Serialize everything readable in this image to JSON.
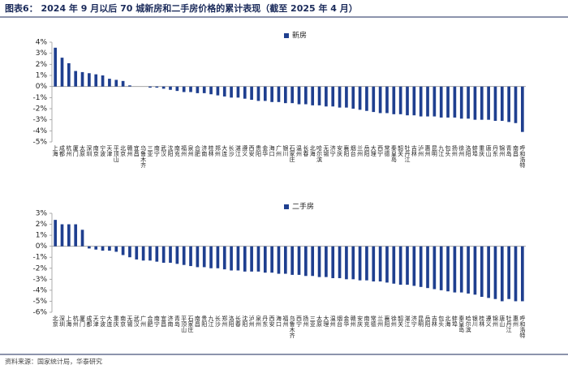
{
  "title": "图表6： 2024 年 9 月以后 70 城新房和二手房价格的累计表现（截至 2025 年 4 月）",
  "source": "资料来源：国家统计局，华泰研究",
  "chart_data": [
    {
      "type": "bar",
      "categories": [
        "上海",
        "成都",
        "杭州",
        "厦门",
        "太原",
        "深圳",
        "南京",
        "宁波",
        "天津",
        "平顶山",
        "北京",
        "赣州",
        "宜昌",
        "乌鲁木齐",
        "三亚",
        "南宁",
        "武汉",
        "沈阳",
        "南充",
        "福州",
        "泉州",
        "合肥",
        "济南",
        "桂林",
        "郑州",
        "大连",
        "长沙",
        "湛江",
        "遵义",
        "西安",
        "贵阳",
        "金华",
        "海口",
        "广州",
        "银川",
        "石家庄",
        "温州",
        "长春",
        "北海",
        "哈尔滨",
        "无锡",
        "济宁",
        "安庆",
        "襄阳",
        "烟台",
        "兰州",
        "岳阳",
        "大理",
        "西宁",
        "常德",
        "秦皇岛",
        "韶关",
        "牡丹江",
        "吉林",
        "泸州",
        "惠州",
        "昆明",
        "九江",
        "包头",
        "扬州",
        "徐州",
        "洛阳",
        "蚌埠",
        "重庆",
        "唐山",
        "丹东",
        "锦州",
        "青岛",
        "南昌",
        "呼和浩特"
      ],
      "series": [
        {
          "name": "新房",
          "color": "#1f3f8f",
          "values": [
            3.5,
            2.6,
            2.1,
            1.4,
            1.3,
            1.2,
            1.1,
            1.0,
            0.7,
            0.6,
            0.5,
            0.1,
            0.0,
            0.0,
            -0.1,
            -0.1,
            -0.2,
            -0.3,
            -0.4,
            -0.5,
            -0.5,
            -0.6,
            -0.6,
            -0.7,
            -0.8,
            -0.9,
            -1.0,
            -1.0,
            -1.1,
            -1.2,
            -1.3,
            -1.3,
            -1.4,
            -1.4,
            -1.5,
            -1.5,
            -1.6,
            -1.6,
            -1.7,
            -1.7,
            -1.8,
            -1.8,
            -1.9,
            -1.9,
            -2.0,
            -2.1,
            -2.2,
            -2.3,
            -2.4,
            -2.4,
            -2.5,
            -2.5,
            -2.6,
            -2.6,
            -2.7,
            -2.7,
            -2.7,
            -2.8,
            -2.8,
            -2.8,
            -2.9,
            -2.9,
            -3.0,
            -3.0,
            -3.0,
            -3.1,
            -3.1,
            -3.2,
            -3.3,
            -4.1
          ]
        }
      ],
      "ylim": [
        -5,
        4
      ],
      "yticks": [
        {
          "value": 4,
          "label": "4%"
        },
        {
          "value": 3,
          "label": "3%"
        },
        {
          "value": 2,
          "label": "2%"
        },
        {
          "value": 1,
          "label": "1%"
        },
        {
          "value": 0,
          "label": "0%"
        },
        {
          "value": -1,
          "label": "-1%"
        },
        {
          "value": -2,
          "label": "-2%"
        },
        {
          "value": -3,
          "label": "-3%"
        },
        {
          "value": -4,
          "label": "-4%"
        },
        {
          "value": -5,
          "label": "-5%"
        }
      ],
      "grid": false
    },
    {
      "type": "bar",
      "categories": [
        "北京",
        "深圳",
        "上海",
        "杭州",
        "厦门",
        "成都",
        "天津",
        "宁波",
        "大连",
        "重庆",
        "南京",
        "无锡",
        "武汉",
        "广州",
        "合肥",
        "南宁",
        "宜昌",
        "济南",
        "青岛",
        "平顶山",
        "石家庄",
        "南昌",
        "贵阳",
        "九江",
        "长沙",
        "郑州",
        "洛阳",
        "长春",
        "沈阳",
        "泸州",
        "泉州",
        "丹东",
        "西安",
        "海口",
        "福州",
        "乌鲁木齐",
        "西宁",
        "扬州",
        "三亚",
        "太原",
        "大理",
        "温州",
        "烟台",
        "金华",
        "赣州",
        "安庆",
        "南充",
        "常德",
        "兰州",
        "襄阳",
        "徐州",
        "韶关",
        "湛江",
        "济宁",
        "昆明",
        "岳阳",
        "吉林",
        "包头",
        "北海",
        "蚌埠",
        "秦皇岛",
        "哈尔滨",
        "银川",
        "桂林",
        "遵义",
        "锦州",
        "唐山",
        "牡丹江",
        "惠州",
        "呼和浩特"
      ],
      "series": [
        {
          "name": "二手房",
          "color": "#1f3f8f",
          "values": [
            2.4,
            2.0,
            2.0,
            2.0,
            1.5,
            -0.2,
            -0.3,
            -0.4,
            -0.4,
            -0.5,
            -0.8,
            -1.0,
            -1.2,
            -1.3,
            -1.3,
            -1.4,
            -1.5,
            -1.5,
            -1.6,
            -1.7,
            -1.8,
            -1.9,
            -1.9,
            -2.0,
            -2.0,
            -2.1,
            -2.2,
            -2.2,
            -2.3,
            -2.3,
            -2.3,
            -2.4,
            -2.4,
            -2.5,
            -2.5,
            -2.6,
            -2.6,
            -2.7,
            -2.7,
            -2.8,
            -2.8,
            -2.9,
            -2.9,
            -3.0,
            -3.0,
            -3.1,
            -3.1,
            -3.2,
            -3.2,
            -3.3,
            -3.4,
            -3.5,
            -3.5,
            -3.6,
            -3.7,
            -3.8,
            -3.9,
            -4.0,
            -4.1,
            -4.2,
            -4.2,
            -4.3,
            -4.4,
            -4.6,
            -4.7,
            -4.8,
            -5.0,
            -4.8,
            -5.0,
            -5.0
          ]
        }
      ],
      "ylim": [
        -6,
        3
      ],
      "yticks": [
        {
          "value": 3,
          "label": "3%"
        },
        {
          "value": 2,
          "label": "2%"
        },
        {
          "value": 1,
          "label": "1%"
        },
        {
          "value": 0,
          "label": "0%"
        },
        {
          "value": -1,
          "label": "-1%"
        },
        {
          "value": -2,
          "label": "-2%"
        },
        {
          "value": -3,
          "label": "-3%"
        },
        {
          "value": -4,
          "label": "-4%"
        },
        {
          "value": -5,
          "label": "-5%"
        },
        {
          "value": -6,
          "label": "-6%"
        }
      ],
      "grid": false
    }
  ]
}
